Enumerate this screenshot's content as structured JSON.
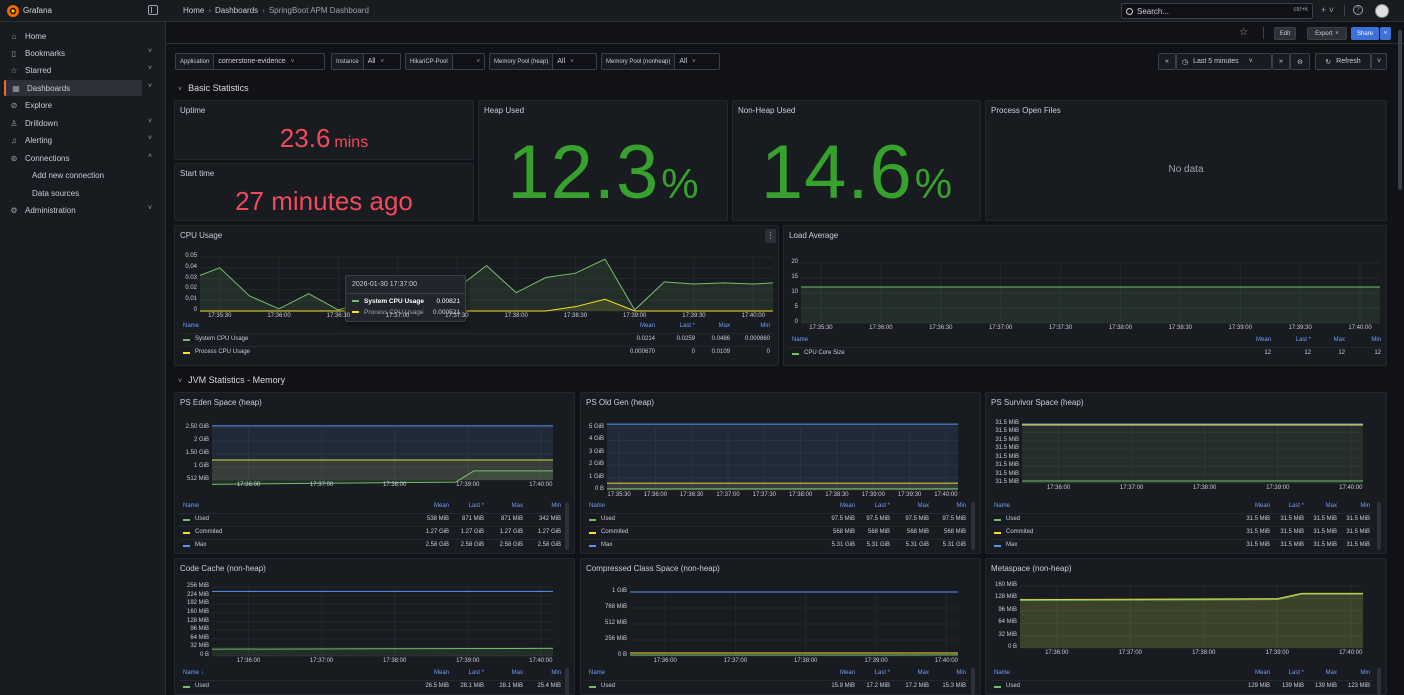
{
  "app": {
    "brand": "Grafana"
  },
  "breadcrumb": [
    "Home",
    "Dashboards",
    "SpringBoot APM Dashboard"
  ],
  "search": {
    "placeholder": "Search...",
    "shortcut": "ctrl+k"
  },
  "sidebar": {
    "items": [
      {
        "label": "Home",
        "icon": "home-icon"
      },
      {
        "label": "Bookmarks",
        "icon": "bookmark-icon"
      },
      {
        "label": "Starred",
        "icon": "star-icon"
      },
      {
        "label": "Dashboards",
        "icon": "grid-icon"
      },
      {
        "label": "Explore",
        "icon": "compass-icon"
      },
      {
        "label": "Drilldown",
        "icon": "drilldown-icon"
      },
      {
        "label": "Alerting",
        "icon": "bell-icon"
      },
      {
        "label": "Connections",
        "icon": "link-icon"
      },
      {
        "label": "Add new connection",
        "icon": ""
      },
      {
        "label": "Data sources",
        "icon": ""
      },
      {
        "label": "Administration",
        "icon": "gear-icon"
      }
    ]
  },
  "dashbar": {
    "edit": "Edit",
    "export": "Export",
    "share": "Share"
  },
  "variables": [
    {
      "label": "Application",
      "value": "cornerstone-evidence"
    },
    {
      "label": "Instance",
      "value": "All"
    },
    {
      "label": "HikariCP-Pool",
      "value": ""
    },
    {
      "label": "Memory Pool (heap)",
      "value": "All"
    },
    {
      "label": "Memory Pool (nonheap)",
      "value": "All"
    }
  ],
  "time": {
    "range": "Last 5 minutes",
    "refresh": "Refresh"
  },
  "rows": {
    "basic": "Basic Statistics",
    "jvm": "JVM Statistics - Memory"
  },
  "colors": {
    "green": "#73bf69",
    "yellow": "#fade2a",
    "blue": "#5794f2",
    "red": "#f2495c",
    "statgreen": "#37872d"
  },
  "stats": {
    "uptime": {
      "title": "Uptime",
      "value": "23.6",
      "unit": "mins"
    },
    "start": {
      "title": "Start time",
      "value": "27 minutes ago"
    },
    "heap": {
      "title": "Heap Used",
      "value": "12.3",
      "unit": "%"
    },
    "nonheap": {
      "title": "Non-Heap Used",
      "value": "14.6",
      "unit": "%"
    },
    "files": {
      "title": "Process Open Files",
      "value": "No data"
    }
  },
  "legend_headers": {
    "name": "Name",
    "mean": "Mean",
    "last": "Last *",
    "max": "Max",
    "min": "Min"
  },
  "cpu": {
    "title": "CPU Usage",
    "yticks": [
      "0.05",
      "0.04",
      "0.03",
      "0.02",
      "0.01",
      "0"
    ],
    "xticks": [
      "17:35:30",
      "17:36:00",
      "17:36:30",
      "17:37:00",
      "17:37:30",
      "17:38:00",
      "17:38:30",
      "17:39:00",
      "17:39:30",
      "17:40:00"
    ],
    "legend": [
      {
        "name": "System CPU Usage",
        "mean": "0.0214",
        "last": "0.0259",
        "max": "0.0486",
        "min": "0.000860"
      },
      {
        "name": "Process CPU Usage",
        "mean": "0.000670",
        "last": "0",
        "max": "0.0109",
        "min": "0"
      }
    ],
    "tooltip": {
      "time": "2026-01-30 17:37:00",
      "s1": "System CPU Usage",
      "v1": "0.00821",
      "s2": "Process CPU Usage",
      "v2": "0.000521"
    }
  },
  "load": {
    "title": "Load Average",
    "yticks": [
      "20",
      "15",
      "10",
      "5",
      "0"
    ],
    "xticks": [
      "17:35:30",
      "17:36:00",
      "17:36:30",
      "17:37:00",
      "17:37:30",
      "17:38:00",
      "17:38:30",
      "17:39:00",
      "17:39:30",
      "17:40:00"
    ],
    "legend": [
      {
        "name": "CPU Core Size",
        "mean": "12",
        "last": "12",
        "max": "12",
        "min": "12"
      }
    ]
  },
  "eden": {
    "title": "PS Eden Space (heap)",
    "yticks": [
      "2.50 GiB",
      "2 GiB",
      "1.50 GiB",
      "1 GiB",
      "512 MiB"
    ],
    "xticks": [
      "17:36:00",
      "17:37:00",
      "17:38:00",
      "17:39:00",
      "17:40:00"
    ],
    "legend": [
      {
        "name": "Used",
        "mean": "538 MiB",
        "last": "871 MiB",
        "max": "871 MiB",
        "min": "342 MiB"
      },
      {
        "name": "Commited",
        "mean": "1.27 GiB",
        "last": "1.27 GiB",
        "max": "1.27 GiB",
        "min": "1.27 GiB"
      },
      {
        "name": "Max",
        "mean": "2.58 GiB",
        "last": "2.58 GiB",
        "max": "2.58 GiB",
        "min": "2.58 GiB"
      }
    ]
  },
  "oldgen": {
    "title": "PS Old Gen (heap)",
    "yticks": [
      "5 GiB",
      "4 GiB",
      "3 GiB",
      "2 GiB",
      "1 GiB",
      "0 B"
    ],
    "xticks": [
      "17:35:30",
      "17:36:00",
      "17:36:30",
      "17:37:00",
      "17:37:30",
      "17:38:00",
      "17:38:30",
      "17:39:00",
      "17:39:30",
      "17:40:00"
    ],
    "legend": [
      {
        "name": "Used",
        "mean": "97.5 MiB",
        "last": "97.5 MiB",
        "max": "97.5 MiB",
        "min": "97.5 MiB"
      },
      {
        "name": "Commited",
        "mean": "568 MiB",
        "last": "568 MiB",
        "max": "568 MiB",
        "min": "568 MiB"
      },
      {
        "name": "Max",
        "mean": "5.31 GiB",
        "last": "5.31 GiB",
        "max": "5.31 GiB",
        "min": "5.31 GiB"
      }
    ]
  },
  "survivor": {
    "title": "PS Survivor Space (heap)",
    "yticks": [
      "31.5 MiB",
      "31.5 MiB",
      "31.5 MiB",
      "31.5 MiB",
      "31.5 MiB",
      "31.5 MiB",
      "31.5 MiB",
      "31.5 MiB"
    ],
    "xticks": [
      "17:36:00",
      "17:37:00",
      "17:38:00",
      "17:39:00",
      "17:40:00"
    ],
    "legend": [
      {
        "name": "Used",
        "mean": "31.5 MiB",
        "last": "31.5 MiB",
        "max": "31.5 MiB",
        "min": "31.5 MiB"
      },
      {
        "name": "Commited",
        "mean": "31.5 MiB",
        "last": "31.5 MiB",
        "max": "31.5 MiB",
        "min": "31.5 MiB"
      },
      {
        "name": "Max",
        "mean": "31.5 MiB",
        "last": "31.5 MiB",
        "max": "31.5 MiB",
        "min": "31.5 MiB"
      }
    ]
  },
  "codecache": {
    "title": "Code Cache (non-heap)",
    "yticks": [
      "256 MiB",
      "224 MiB",
      "192 MiB",
      "160 MiB",
      "128 MiB",
      "96 MiB",
      "64 MiB",
      "32 MiB",
      "0 B"
    ],
    "xticks": [
      "17:36:00",
      "17:37:00",
      "17:38:00",
      "17:39:00",
      "17:40:00"
    ],
    "legend_name_header": "Name ↓",
    "legend": [
      {
        "name": "Used",
        "mean": "26.5 MiB",
        "last": "28.1 MiB",
        "max": "28.1 MiB",
        "min": "25.4 MiB"
      }
    ]
  },
  "compressed": {
    "title": "Compressed Class Space (non-heap)",
    "yticks": [
      "1 GiB",
      "768 MiB",
      "512 MiB",
      "256 MiB",
      "0 B"
    ],
    "xticks": [
      "17:36:00",
      "17:37:00",
      "17:38:00",
      "17:39:00",
      "17:40:00"
    ],
    "legend": [
      {
        "name": "Used",
        "mean": "15.9 MiB",
        "last": "17.2 MiB",
        "max": "17.2 MiB",
        "min": "15.3 MiB"
      }
    ]
  },
  "metaspace": {
    "title": "Metaspace (non-heap)",
    "yticks": [
      "160 MiB",
      "128 MiB",
      "96 MiB",
      "64 MiB",
      "32 MiB",
      "0 B"
    ],
    "xticks": [
      "17:36:00",
      "17:37:00",
      "17:38:00",
      "17:39:00",
      "17:40:00"
    ],
    "legend": [
      {
        "name": "Used",
        "mean": "129 MiB",
        "last": "139 MiB",
        "max": "139 MiB",
        "min": "123 MiB"
      }
    ]
  },
  "chart_data": [
    {
      "type": "line",
      "title": "CPU Usage",
      "ylim": [
        0,
        0.05
      ],
      "x": [
        "17:35:20",
        "17:35:30",
        "17:35:45",
        "17:36:00",
        "17:36:15",
        "17:36:30",
        "17:36:45",
        "17:37:00",
        "17:37:15",
        "17:37:30",
        "17:37:45",
        "17:38:00",
        "17:38:15",
        "17:38:30",
        "17:38:45",
        "17:39:00",
        "17:39:15",
        "17:39:30",
        "17:39:45",
        "17:40:00",
        "17:40:10"
      ],
      "series": [
        {
          "name": "System CPU Usage",
          "values": [
            0.033,
            0.04,
            0.014,
            0.002,
            0.016,
            0.001,
            0.01,
            0.008,
            0.033,
            0.021,
            0.042,
            0.017,
            0.031,
            0.035,
            0.048,
            0.001,
            0.027,
            0.025,
            0.026,
            0.025,
            0.026
          ]
        },
        {
          "name": "Process CPU Usage",
          "values": [
            0,
            0,
            0,
            0,
            0,
            0,
            0,
            0.0005,
            0,
            0,
            0,
            0,
            0,
            0.004,
            0.0109,
            0,
            0,
            0,
            0,
            0,
            0
          ]
        }
      ]
    },
    {
      "type": "line",
      "title": "Load Average",
      "ylim": [
        0,
        20
      ],
      "x": [
        "17:35:20",
        "17:40:10"
      ],
      "series": [
        {
          "name": "CPU Core Size",
          "values": [
            12,
            12
          ]
        }
      ]
    },
    {
      "type": "line",
      "title": "PS Eden Space (heap)",
      "ylim": [
        0,
        2.75
      ],
      "x": [
        "17:35:30",
        "17:38:50",
        "17:39:05",
        "17:40:10"
      ],
      "series": [
        {
          "name": "Used",
          "values": [
            0.334,
            0.42,
            0.85,
            0.85
          ]
        },
        {
          "name": "Commited",
          "values": [
            1.27,
            1.27,
            1.27,
            1.27
          ]
        },
        {
          "name": "Max",
          "values": [
            2.58,
            2.58,
            2.58,
            2.58
          ]
        }
      ]
    },
    {
      "type": "line",
      "title": "PS Old Gen (heap)",
      "ylim": [
        0,
        5.5
      ],
      "x": [
        "17:35:20",
        "17:40:10"
      ],
      "series": [
        {
          "name": "Used",
          "values": [
            0.095,
            0.095
          ]
        },
        {
          "name": "Commited",
          "values": [
            0.555,
            0.555
          ]
        },
        {
          "name": "Max",
          "values": [
            5.31,
            5.31
          ]
        }
      ]
    },
    {
      "type": "line",
      "title": "PS Survivor Space (heap)",
      "x": [
        "17:35:30",
        "17:40:10"
      ],
      "series": [
        {
          "name": "Used",
          "values": [
            31.5,
            31.5
          ]
        },
        {
          "name": "Commited",
          "values": [
            31.5,
            31.5
          ]
        },
        {
          "name": "Max",
          "values": [
            31.5,
            31.5
          ]
        }
      ]
    },
    {
      "type": "line",
      "title": "Code Cache (non-heap)",
      "ylim": [
        0,
        260
      ],
      "x": [
        "17:35:30",
        "17:40:10"
      ],
      "series": [
        {
          "name": "Used",
          "values": [
            25.4,
            28.1
          ]
        }
      ]
    },
    {
      "type": "line",
      "title": "Compressed Class Space (non-heap)",
      "ylim": [
        0,
        1100
      ],
      "x": [
        "17:35:30",
        "17:40:10"
      ],
      "series": [
        {
          "name": "Used",
          "values": [
            15.3,
            17.2
          ]
        }
      ]
    },
    {
      "type": "line",
      "title": "Metaspace (non-heap)",
      "ylim": [
        0,
        170
      ],
      "x": [
        "17:35:30",
        "17:39:00",
        "17:39:20",
        "17:40:10"
      ],
      "series": [
        {
          "name": "Used",
          "values": [
            123,
            125,
            139,
            139
          ]
        }
      ]
    }
  ]
}
